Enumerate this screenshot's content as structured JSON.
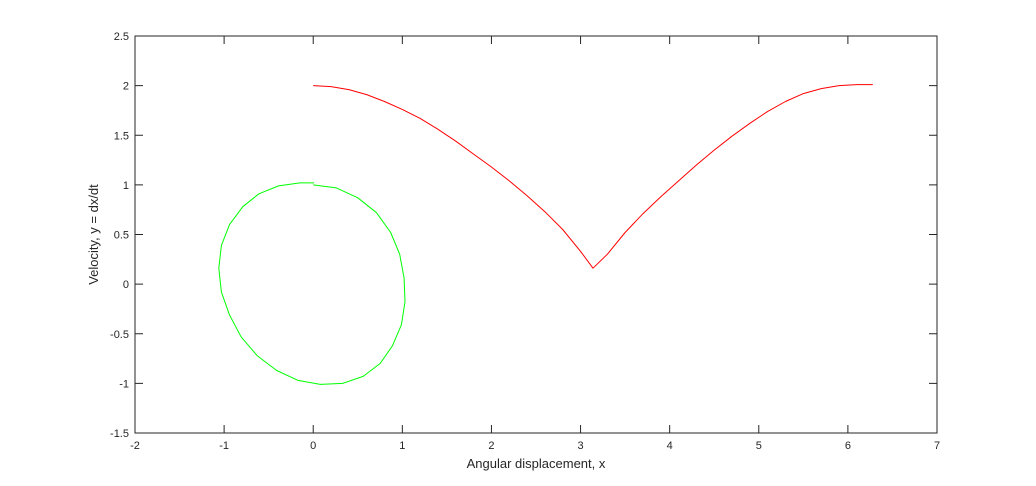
{
  "chart_data": {
    "type": "line",
    "title": "",
    "xlabel": "Angular displacement, x",
    "ylabel": "Velocity, y = dx/dt",
    "xlim": [
      -2,
      7
    ],
    "ylim": [
      -1.5,
      2.5
    ],
    "xticks": [
      -2,
      -1,
      0,
      1,
      2,
      3,
      4,
      5,
      6,
      7
    ],
    "yticks": [
      -1.5,
      -1,
      -0.5,
      0,
      0.5,
      1,
      1.5,
      2,
      2.5
    ],
    "xtick_labels": [
      "-2",
      "-1",
      "0",
      "1",
      "2",
      "3",
      "4",
      "5",
      "6",
      "7"
    ],
    "ytick_labels": [
      "-1.5",
      "-1",
      "-0.5",
      "0",
      "0.5",
      "1",
      "1.5",
      "2",
      "2.5"
    ],
    "grid": false,
    "box": true,
    "series": [
      {
        "color": "#00ff00",
        "x": [
          0.0,
          0.26,
          0.5,
          0.71,
          0.87,
          0.97,
          1.02,
          1.03,
          0.99,
          0.89,
          0.75,
          0.56,
          0.33,
          0.08,
          -0.17,
          -0.41,
          -0.63,
          -0.81,
          -0.94,
          -1.03,
          -1.06,
          -1.03,
          -0.94,
          -0.79,
          -0.61,
          -0.39,
          -0.15,
          0.01
        ],
        "y": [
          1.0,
          0.97,
          0.87,
          0.72,
          0.52,
          0.3,
          0.06,
          -0.18,
          -0.41,
          -0.62,
          -0.8,
          -0.93,
          -1.0,
          -1.01,
          -0.97,
          -0.87,
          -0.72,
          -0.53,
          -0.31,
          -0.08,
          0.16,
          0.39,
          0.6,
          0.78,
          0.91,
          0.99,
          1.02,
          1.02
        ]
      },
      {
        "color": "#ff0000",
        "x": [
          0.0,
          0.2,
          0.4,
          0.6,
          0.8,
          1.0,
          1.2,
          1.4,
          1.6,
          1.8,
          2.0,
          2.2,
          2.4,
          2.6,
          2.8,
          3.0,
          3.14,
          3.3,
          3.5,
          3.7,
          3.9,
          4.1,
          4.3,
          4.5,
          4.7,
          4.9,
          5.1,
          5.3,
          5.5,
          5.7,
          5.9,
          6.1,
          6.28
        ],
        "y": [
          2.0,
          1.99,
          1.96,
          1.91,
          1.84,
          1.76,
          1.67,
          1.56,
          1.44,
          1.31,
          1.18,
          1.04,
          0.89,
          0.73,
          0.55,
          0.33,
          0.16,
          0.3,
          0.52,
          0.71,
          0.88,
          1.04,
          1.2,
          1.35,
          1.49,
          1.62,
          1.74,
          1.84,
          1.92,
          1.97,
          2.0,
          2.01,
          2.01
        ]
      }
    ]
  }
}
